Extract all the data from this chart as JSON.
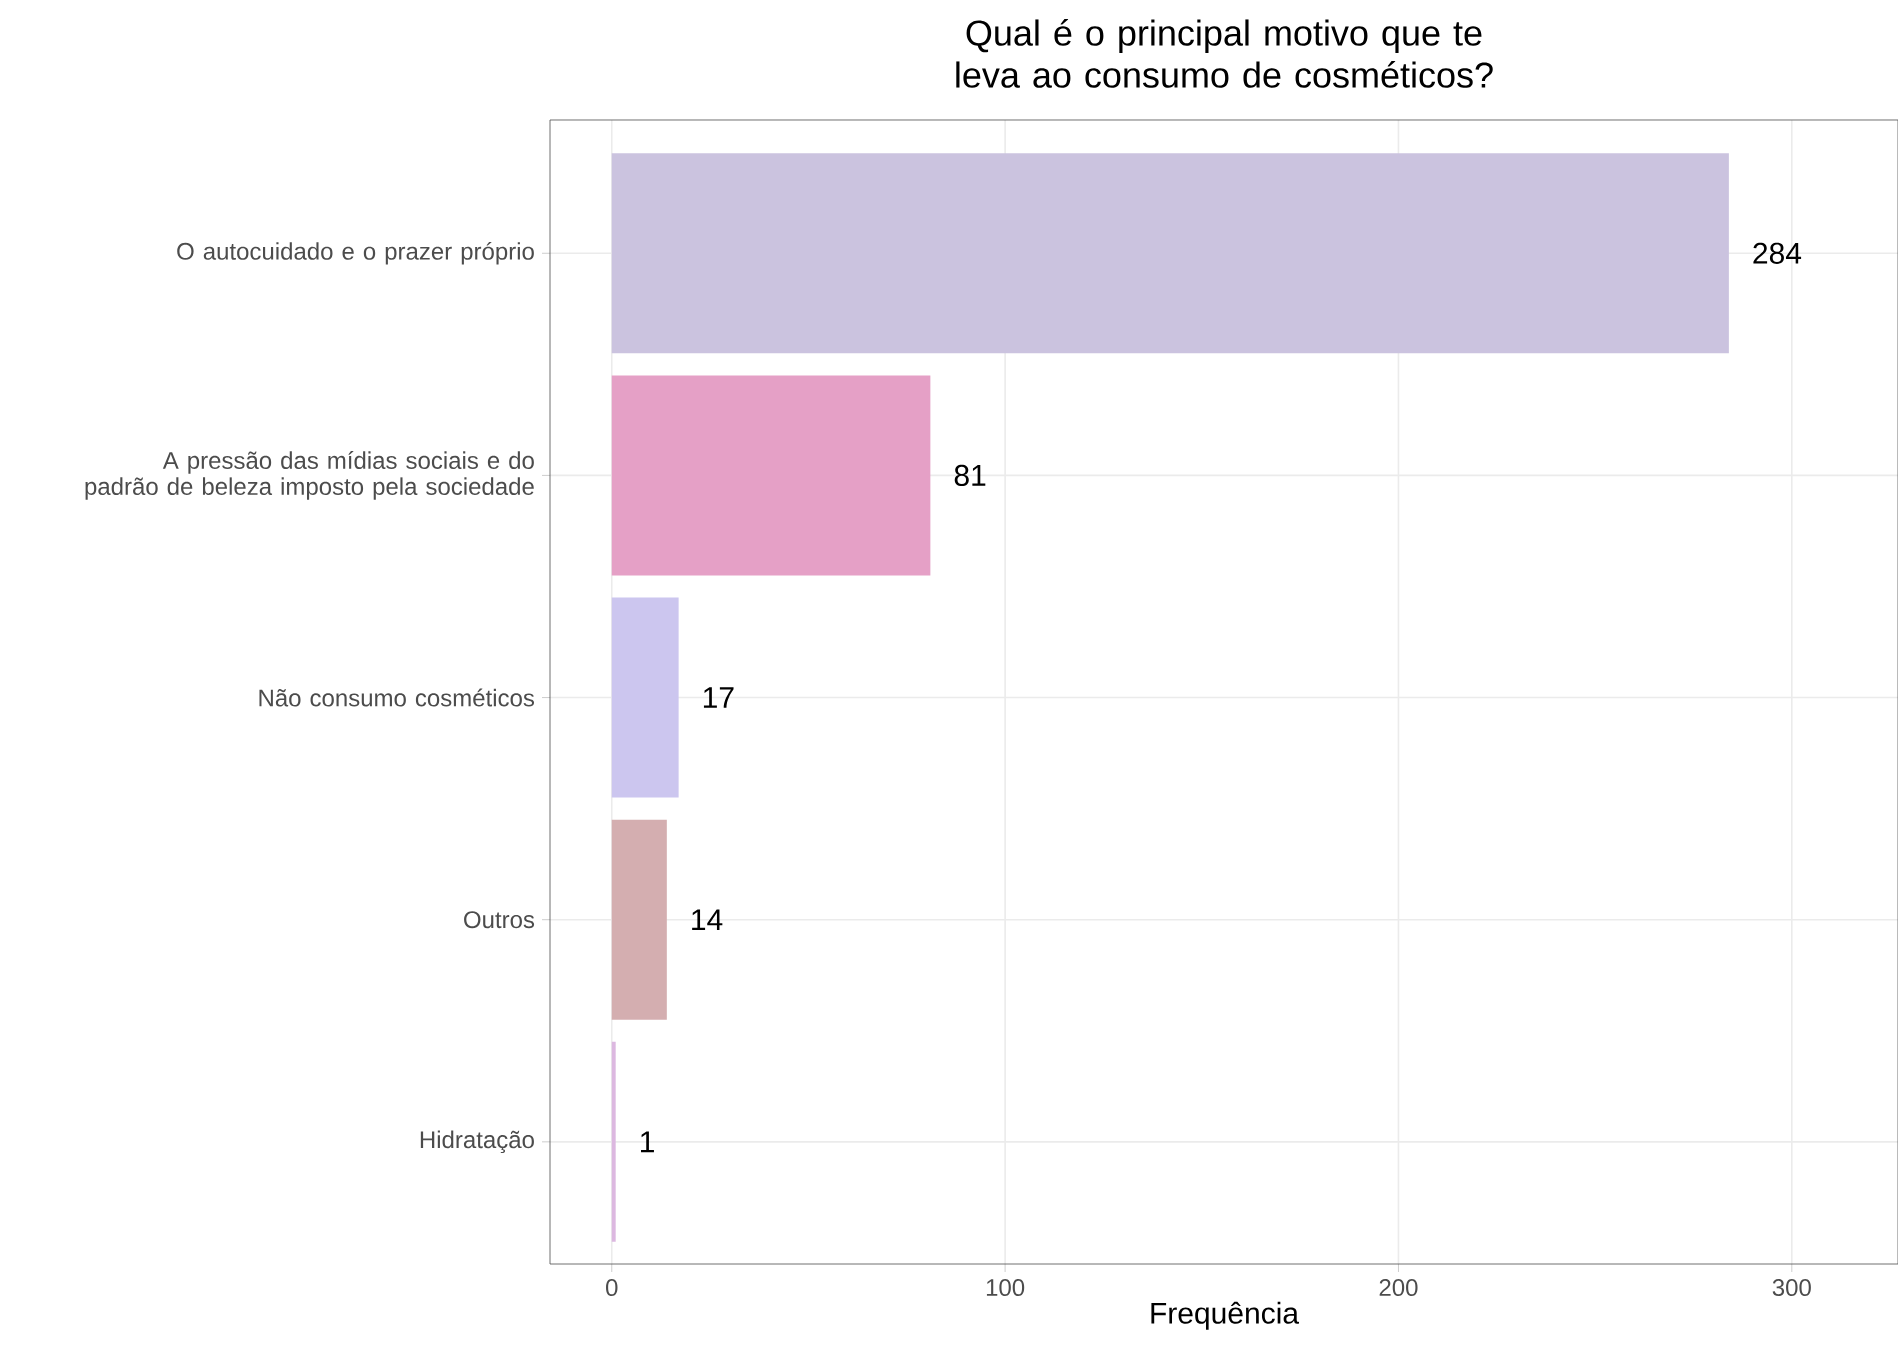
{
  "chart_data": {
    "type": "bar",
    "orientation": "horizontal",
    "title": "Qual é o principal motivo que te leva ao consumo de cosméticos?",
    "xlabel": "Frequência",
    "categories": [
      "O autocuidado e o prazer próprio",
      "A pressão das mídias sociais e do padrão de beleza imposto pela sociedade",
      "Não consumo cosméticos",
      "Outros",
      "Hidratação"
    ],
    "values": [
      284,
      81,
      17,
      14,
      1
    ],
    "colors": [
      "#cbc3df",
      "#e5a0c6",
      "#ccc6ef",
      "#d4aeb0",
      "#dcb8e0"
    ],
    "xlim": [
      -15.7,
      327
    ],
    "xticks": [
      0,
      100,
      200,
      300
    ],
    "grid": true,
    "data_labels": true
  }
}
